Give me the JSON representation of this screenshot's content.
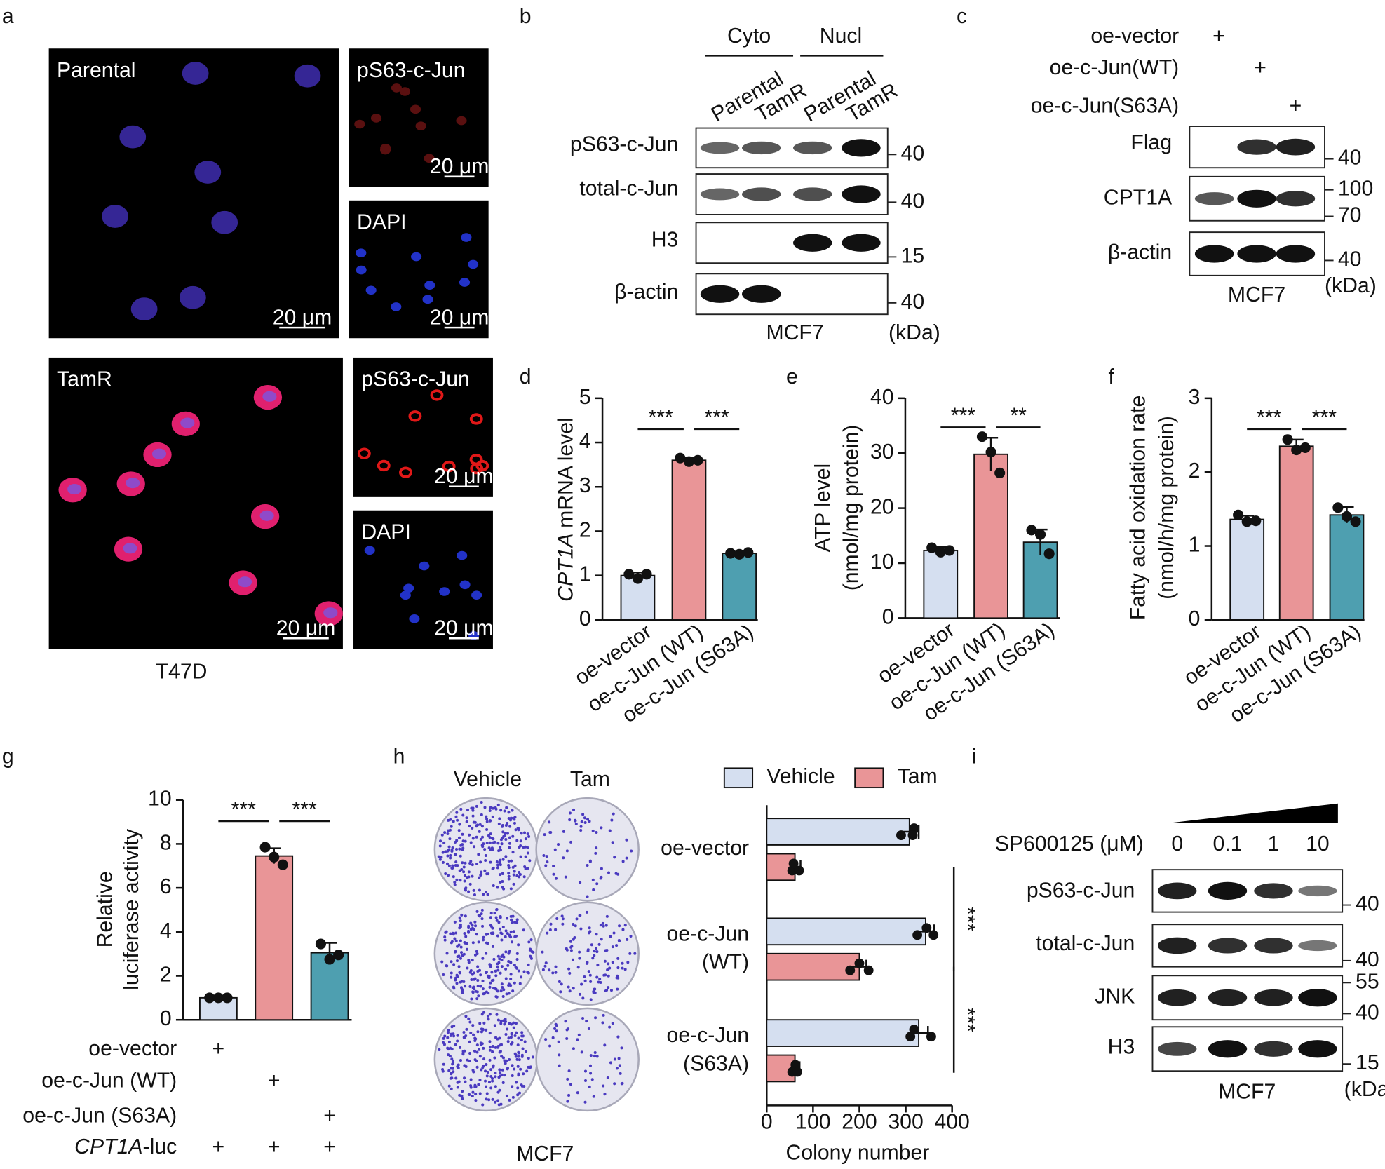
{
  "panel_a": {
    "label": "a",
    "images": [
      {
        "title": "Parental",
        "scale_bar": "20 μm"
      },
      {
        "title": "pS63-c-Jun",
        "scale_bar": "20 μm"
      },
      {
        "title": "DAPI",
        "scale_bar": "20 μm"
      },
      {
        "title": "TamR",
        "scale_bar": "20 μm"
      },
      {
        "title": "pS63-c-Jun",
        "scale_bar": "20 μm"
      },
      {
        "title": "DAPI",
        "scale_bar": "20 μm"
      }
    ],
    "cell_line": "T47D"
  },
  "panel_b": {
    "label": "b",
    "groups": [
      "Cyto",
      "Nucl"
    ],
    "lanes": [
      "Parental",
      "TamR",
      "Parental",
      "TamR"
    ],
    "rows": [
      {
        "name": "pS63-c-Jun",
        "markers": [
          40
        ]
      },
      {
        "name": "total-c-Jun",
        "markers": [
          40
        ]
      },
      {
        "name": "H3",
        "markers": [
          15
        ]
      },
      {
        "name": "β-actin",
        "markers": [
          40
        ]
      }
    ],
    "cell_line": "MCF7",
    "unit": "(kDa)"
  },
  "panel_c": {
    "label": "c",
    "conditions": [
      {
        "name": "oe-vector",
        "signs": [
          "+",
          null,
          null
        ]
      },
      {
        "name": "oe-c-Jun(WT)",
        "signs": [
          null,
          "+",
          null
        ]
      },
      {
        "name": "oe-c-Jun(S63A)",
        "signs": [
          null,
          null,
          "+"
        ]
      }
    ],
    "rows": [
      {
        "name": "Flag",
        "markers": [
          40
        ]
      },
      {
        "name": "CPT1A",
        "markers": [
          100,
          70
        ]
      },
      {
        "name": "β-actin",
        "markers": [
          40
        ]
      }
    ],
    "cell_line": "MCF7",
    "unit": "(kDa)"
  },
  "panel_h_images": {
    "columns": [
      "Vehicle",
      "Tam"
    ],
    "cell_line": "MCF7"
  },
  "panel_i": {
    "label": "i",
    "treatment": "SP600125 (μM)",
    "doses": [
      0,
      0.1,
      1,
      10
    ],
    "rows": [
      {
        "name": "pS63-c-Jun",
        "markers": [
          40
        ]
      },
      {
        "name": "total-c-Jun",
        "markers": [
          40
        ]
      },
      {
        "name": "JNK",
        "markers": [
          55,
          40
        ]
      },
      {
        "name": "H3",
        "markers": [
          15
        ]
      }
    ],
    "cell_line": "MCF7",
    "unit": "(kDa)"
  },
  "chart_data": [
    {
      "type": "bar",
      "label": "d",
      "y_label": [
        {
          "italic": "CPT1A",
          "text": "mRNA level"
        }
      ],
      "categories": [
        "oe-vector",
        "oe-c-Jun (WT)",
        "oe-c-Jun (S63A)"
      ],
      "colors": [
        "#d5dff0",
        "#e99597",
        "#4e9fb0"
      ],
      "values": [
        1.0,
        3.6,
        1.5
      ],
      "errors": [
        0.07,
        0.05,
        0.03
      ],
      "points": [
        [
          1.03,
          0.93,
          1.03
        ],
        [
          3.65,
          3.57,
          3.6
        ],
        [
          1.5,
          1.48,
          1.52
        ]
      ],
      "ylim": [
        0,
        5
      ],
      "yticks": [
        0,
        1,
        2,
        3,
        4,
        5
      ],
      "significance": [
        "***",
        "***"
      ]
    },
    {
      "type": "bar",
      "label": "e",
      "y_label": [
        "ATP level",
        "(nmol/mg protein)"
      ],
      "categories": [
        "oe-vector",
        "oe-c-Jun (WT)",
        "oe-c-Jun (S63A)"
      ],
      "colors": [
        "#d5dff0",
        "#e99597",
        "#4e9fb0"
      ],
      "values": [
        12.3,
        29.8,
        13.8
      ],
      "errors": [
        0.6,
        3.0,
        2.3
      ],
      "points": [
        [
          12.8,
          12.0,
          12.3
        ],
        [
          33.0,
          30.2,
          26.4
        ],
        [
          16.0,
          15.2,
          11.7
        ]
      ],
      "ylim": [
        0,
        40
      ],
      "yticks": [
        0,
        10,
        20,
        30,
        40
      ],
      "significance": [
        "***",
        "**"
      ]
    },
    {
      "type": "bar",
      "label": "f",
      "y_label": [
        "Fatty acid oxidation rate",
        "(nmol/h/mg protein)"
      ],
      "categories": [
        "oe-vector",
        "oe-c-Jun (WT)",
        "oe-c-Jun (S63A)"
      ],
      "colors": [
        "#d5dff0",
        "#e99597",
        "#4e9fb0"
      ],
      "values": [
        1.36,
        2.35,
        1.42
      ],
      "errors": [
        0.05,
        0.09,
        0.11
      ],
      "points": [
        [
          1.42,
          1.33,
          1.34
        ],
        [
          2.44,
          2.3,
          2.33
        ],
        [
          1.52,
          1.4,
          1.33
        ]
      ],
      "ylim": [
        0,
        3
      ],
      "yticks": [
        0,
        1,
        2,
        3
      ],
      "significance": [
        "***",
        "***"
      ]
    },
    {
      "type": "bar",
      "label": "g",
      "y_label": [
        "Relative",
        "luciferase activity"
      ],
      "colors": [
        "#d5dff0",
        "#e99597",
        "#4e9fb0"
      ],
      "values": [
        1.0,
        7.45,
        3.05
      ],
      "errors": [
        0.02,
        0.35,
        0.45
      ],
      "points": [
        [
          1.0,
          1.0,
          1.0
        ],
        [
          7.85,
          7.4,
          7.05
        ],
        [
          3.45,
          2.75,
          2.95
        ]
      ],
      "ylim": [
        0,
        10
      ],
      "yticks": [
        0,
        2,
        4,
        6,
        8,
        10
      ],
      "significance": [
        "***",
        "***"
      ],
      "conditions": [
        {
          "name": "oe-vector",
          "signs": [
            "+",
            null,
            null
          ]
        },
        {
          "name": "oe-c-Jun (WT)",
          "signs": [
            null,
            "+",
            null
          ]
        },
        {
          "name": "oe-c-Jun (S63A)",
          "signs": [
            null,
            null,
            "+"
          ]
        },
        {
          "name": {
            "italic": "CPT1A",
            "text": "-luc"
          },
          "signs": [
            "+",
            "+",
            "+"
          ]
        }
      ]
    },
    {
      "type": "hbar",
      "label": "h",
      "categories": [
        [
          "oe-vector"
        ],
        [
          "oe-c-Jun",
          "(WT)"
        ],
        [
          "oe-c-Jun",
          "(S63A)"
        ]
      ],
      "series": [
        {
          "name": "Vehicle",
          "color": "#d5dff0",
          "values": [
            308,
            343,
            328
          ],
          "errors": [
            20,
            18,
            20
          ],
          "points": [
            [
              290,
              318,
              315
            ],
            [
              325,
              345,
              360
            ],
            [
              310,
              318,
              355
            ]
          ]
        },
        {
          "name": "Tam",
          "color": "#e99597",
          "values": [
            61,
            200,
            61
          ],
          "errors": [
            12,
            15,
            10
          ],
          "points": [
            [
              55,
              58,
              70
            ],
            [
              180,
              200,
              220
            ],
            [
              55,
              62,
              66
            ]
          ]
        }
      ],
      "xlim": [
        0,
        400
      ],
      "xticks": [
        0,
        100,
        200,
        300,
        400
      ],
      "x_label": "Colony number",
      "significance": [
        "***",
        "***"
      ]
    }
  ]
}
